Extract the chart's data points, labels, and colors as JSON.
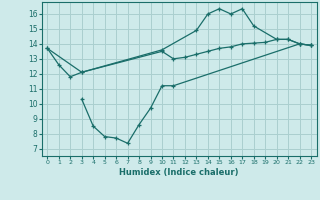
{
  "xlabel": "Humidex (Indice chaleur)",
  "bg_color": "#ceeaea",
  "grid_color": "#aacfcf",
  "line_color": "#1a6e6a",
  "xlim": [
    -0.5,
    23.5
  ],
  "ylim": [
    6.5,
    16.8
  ],
  "yticks": [
    7,
    8,
    9,
    10,
    11,
    12,
    13,
    14,
    15,
    16
  ],
  "xticks": [
    0,
    1,
    2,
    3,
    4,
    5,
    6,
    7,
    8,
    9,
    10,
    11,
    12,
    13,
    14,
    15,
    16,
    17,
    18,
    19,
    20,
    21,
    22,
    23
  ],
  "line1_x": [
    0,
    1,
    2,
    3,
    10,
    13,
    14,
    15,
    16,
    17,
    18,
    20,
    21,
    22,
    23
  ],
  "line1_y": [
    13.7,
    12.6,
    11.8,
    12.1,
    13.6,
    14.9,
    16.0,
    16.35,
    16.0,
    16.35,
    15.2,
    14.3,
    14.3,
    14.0,
    13.9
  ],
  "line2_x": [
    0,
    3,
    10,
    11,
    12,
    13,
    14,
    15,
    16,
    17,
    18,
    19,
    20,
    21,
    22,
    23
  ],
  "line2_y": [
    13.7,
    12.1,
    13.5,
    13.0,
    13.1,
    13.3,
    13.5,
    13.7,
    13.8,
    14.0,
    14.05,
    14.1,
    14.3,
    14.3,
    14.0,
    13.9
  ],
  "line3_x": [
    3,
    4,
    5,
    6,
    7,
    8,
    9,
    10,
    11,
    22,
    23
  ],
  "line3_y": [
    10.3,
    8.5,
    7.8,
    7.7,
    7.35,
    8.6,
    9.7,
    11.2,
    11.2,
    14.0,
    13.9
  ]
}
